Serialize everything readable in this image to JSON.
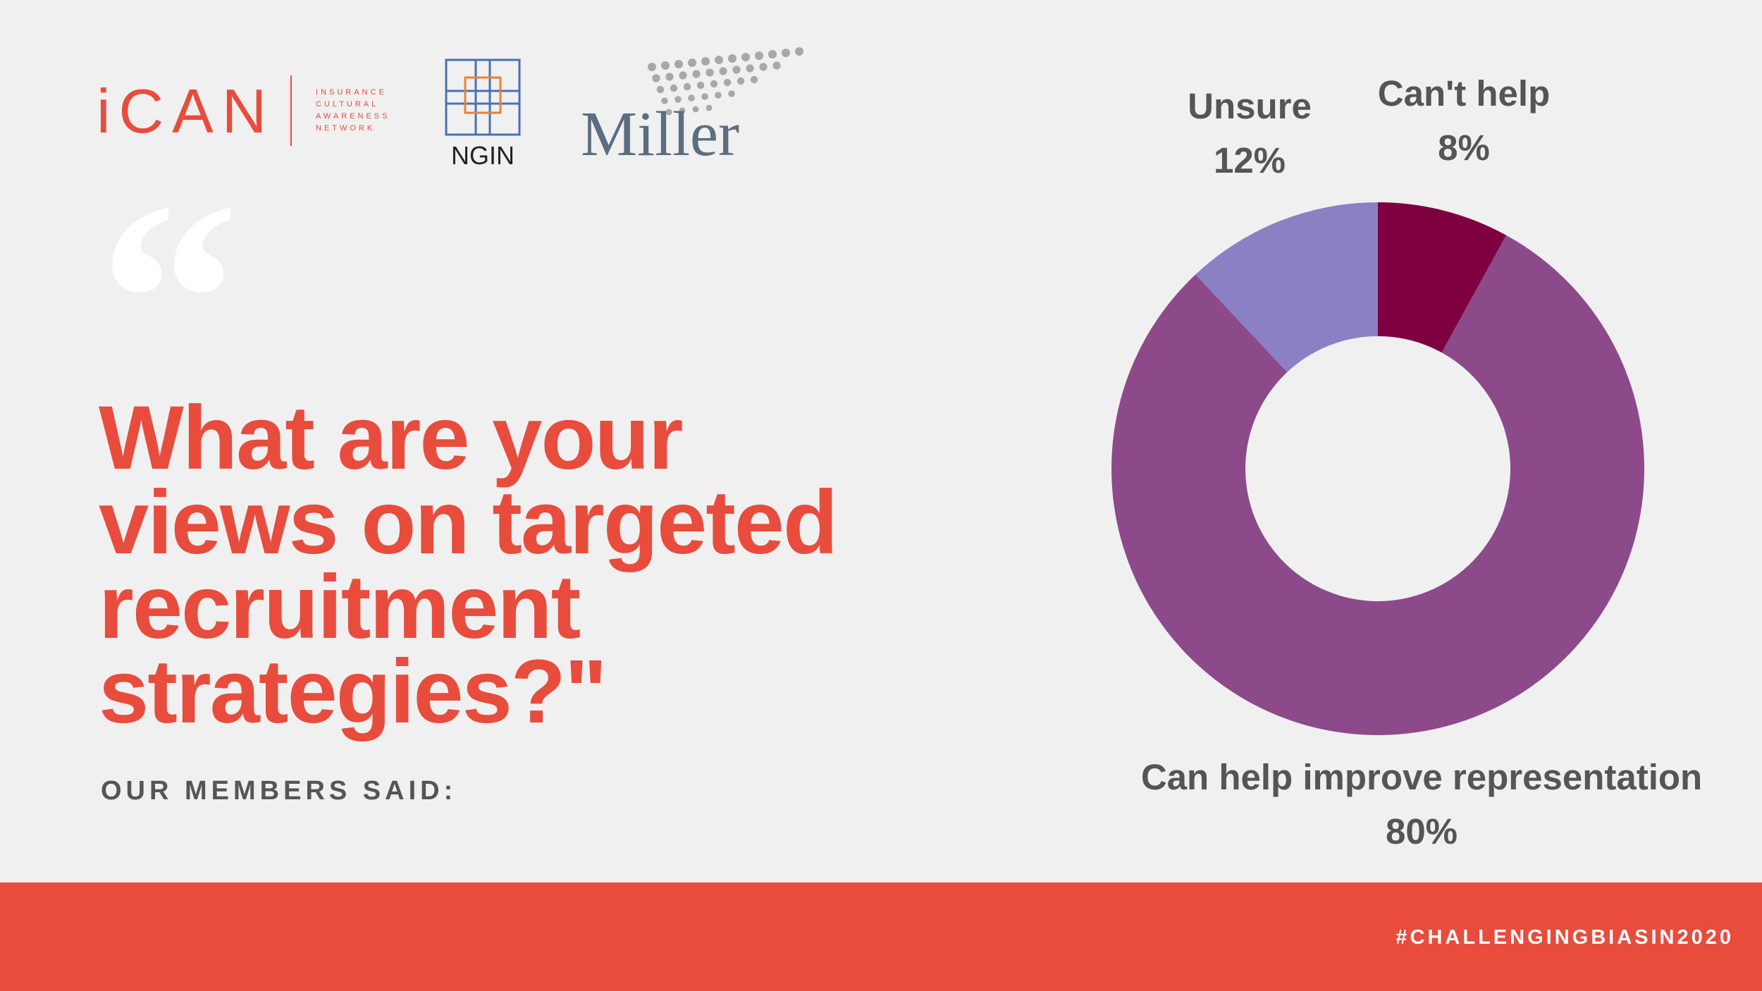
{
  "logos": {
    "ican": "iCAN",
    "ican_tagline": [
      "INSURANCE",
      "CULTURAL",
      "AWARENESS",
      "NETWORK"
    ],
    "ngin": "NGIN",
    "miller": "Miller"
  },
  "quote_mark": "“",
  "question_lines": [
    "What are your",
    "views on targeted",
    "recruitment",
    "strategies?\""
  ],
  "subtitle": "OUR MEMBERS SAID:",
  "hashtag": "#CHALLENGINGBIASIN2020",
  "chart_data": {
    "type": "donut",
    "categories": [
      "Can't help",
      "Can help improve representation",
      "Unsure"
    ],
    "values": [
      8,
      80,
      12
    ],
    "value_labels": [
      "8%",
      "80%",
      "12%"
    ],
    "colors": [
      "#7f0041",
      "#8c4a8b",
      "#8b80c4"
    ]
  }
}
